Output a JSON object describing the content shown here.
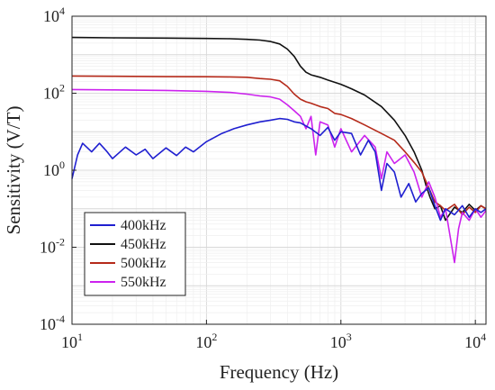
{
  "chart_data": {
    "type": "line",
    "title": "",
    "xlabel": "Frequency (Hz)",
    "ylabel": "Sensitivity (V/T)",
    "x_scale": "log",
    "y_scale": "log",
    "xlim": [
      10,
      12000
    ],
    "ylim": [
      0.0001,
      10000
    ],
    "x_ticks": [
      {
        "base": "10",
        "exp": "1"
      },
      {
        "base": "10",
        "exp": "2"
      },
      {
        "base": "10",
        "exp": "3"
      },
      {
        "base": "10",
        "exp": "4"
      }
    ],
    "y_ticks": [
      {
        "base": "10",
        "exp": "-4"
      },
      {
        "base": "10",
        "exp": "-2"
      },
      {
        "base": "10",
        "exp": "0"
      },
      {
        "base": "10",
        "exp": "2"
      },
      {
        "base": "10",
        "exp": "4"
      }
    ],
    "grid": true,
    "legend_position": "lower-left",
    "series": [
      {
        "name": "400kHz",
        "color": "#1f1fd0",
        "x": [
          10,
          11,
          12,
          14,
          16,
          18,
          20,
          25,
          30,
          35,
          40,
          50,
          60,
          70,
          80,
          100,
          130,
          160,
          200,
          250,
          300,
          350,
          400,
          450,
          500,
          600,
          700,
          800,
          900,
          1000,
          1200,
          1400,
          1600,
          1800,
          2000,
          2200,
          2500,
          2800,
          3200,
          3600,
          4000,
          4500,
          5000,
          5500,
          6000,
          7000,
          8000,
          9000,
          10000,
          11000,
          12000
        ],
        "y": [
          0.6,
          2.5,
          5.0,
          3.0,
          5.0,
          3.2,
          2.0,
          4.0,
          2.5,
          3.5,
          2.0,
          3.8,
          2.4,
          4.0,
          3.0,
          5.5,
          9.0,
          12.0,
          15.0,
          18.0,
          20.0,
          22.0,
          21.0,
          18.0,
          17.0,
          12.0,
          8.0,
          13.0,
          6.0,
          10.0,
          9.0,
          2.5,
          6.0,
          3.0,
          0.3,
          1.5,
          0.9,
          0.2,
          0.45,
          0.15,
          0.25,
          0.35,
          0.12,
          0.05,
          0.1,
          0.07,
          0.12,
          0.06,
          0.1,
          0.08,
          0.1
        ]
      },
      {
        "name": "450kHz",
        "color": "#111111",
        "x": [
          10,
          20,
          50,
          100,
          150,
          200,
          250,
          300,
          350,
          400,
          450,
          500,
          550,
          600,
          700,
          800,
          1000,
          1200,
          1500,
          2000,
          2500,
          3000,
          3500,
          4000,
          4300,
          4600,
          5000,
          5500,
          6000,
          7000,
          8000,
          9000,
          10000,
          11000,
          12000
        ],
        "y": [
          2800,
          2750,
          2700,
          2650,
          2600,
          2500,
          2400,
          2200,
          1900,
          1400,
          900,
          500,
          350,
          300,
          260,
          220,
          170,
          130,
          90,
          45,
          20,
          8,
          3,
          1.0,
          0.4,
          0.2,
          0.1,
          0.12,
          0.05,
          0.11,
          0.08,
          0.13,
          0.09,
          0.12,
          0.1
        ]
      },
      {
        "name": "500kHz",
        "color": "#b52a1a",
        "x": [
          10,
          20,
          50,
          100,
          150,
          200,
          250,
          300,
          350,
          400,
          450,
          500,
          550,
          600,
          700,
          800,
          900,
          1000,
          1200,
          1500,
          2000,
          2500,
          3000,
          3500,
          4000,
          4500,
          5000,
          5500,
          6000,
          7000,
          8000,
          9000,
          10000,
          11000,
          12000
        ],
        "y": [
          280,
          275,
          270,
          268,
          265,
          260,
          240,
          230,
          210,
          150,
          95,
          70,
          60,
          55,
          45,
          40,
          30,
          28,
          22,
          15,
          9,
          6,
          3.0,
          1.6,
          0.9,
          0.35,
          0.15,
          0.12,
          0.09,
          0.13,
          0.07,
          0.11,
          0.08,
          0.12,
          0.1
        ]
      },
      {
        "name": "550kHz",
        "color": "#cc22ee",
        "x": [
          10,
          20,
          50,
          100,
          150,
          200,
          250,
          300,
          350,
          400,
          450,
          500,
          550,
          600,
          650,
          700,
          800,
          900,
          1000,
          1200,
          1500,
          1800,
          2000,
          2200,
          2500,
          3000,
          3500,
          4000,
          4500,
          5000,
          5500,
          6000,
          7000,
          7500,
          8000,
          9000,
          10000,
          11000,
          12000
        ],
        "y": [
          125,
          122,
          118,
          112,
          105,
          95,
          85,
          80,
          70,
          50,
          35,
          25,
          12,
          25,
          2.5,
          18,
          15,
          4,
          12,
          3,
          8,
          4,
          0.6,
          3.0,
          1.5,
          2.5,
          0.9,
          0.2,
          0.5,
          0.2,
          0.06,
          0.1,
          0.004,
          0.03,
          0.08,
          0.05,
          0.1,
          0.06,
          0.09
        ]
      }
    ]
  }
}
